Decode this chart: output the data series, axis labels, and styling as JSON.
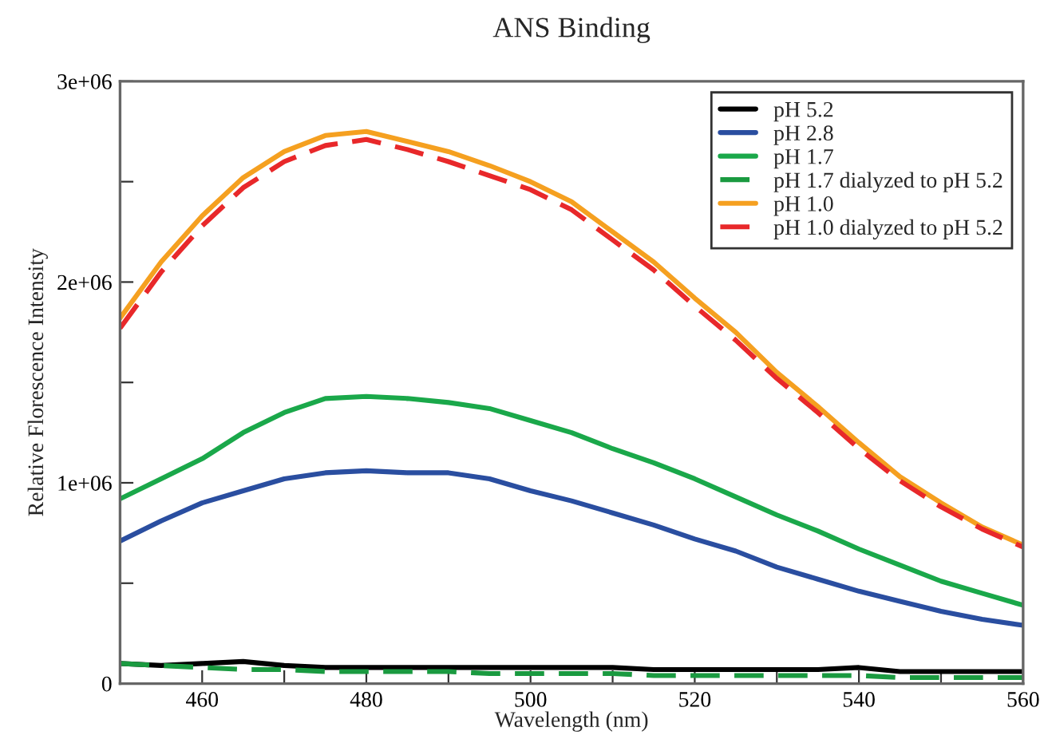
{
  "chart_data": {
    "type": "line",
    "title": "ANS Binding",
    "xlabel": "Wavelength (nm)",
    "ylabel": "Relative Florescence Intensity",
    "x": [
      450,
      455,
      460,
      465,
      470,
      475,
      480,
      485,
      490,
      495,
      500,
      505,
      510,
      515,
      520,
      525,
      530,
      535,
      540,
      545,
      550,
      555,
      560
    ],
    "xlim": [
      450,
      560
    ],
    "xticks": [
      460,
      {
        "value": 470,
        "label": null
      },
      480,
      {
        "value": 490,
        "label": null
      },
      500,
      {
        "value": 510,
        "label": null
      },
      520,
      {
        "value": 530,
        "label": null
      },
      540,
      {
        "value": 550,
        "label": null
      },
      560
    ],
    "ylim": [
      0,
      3000000
    ],
    "yticks": [
      0,
      {
        "value": 500000,
        "label": null
      },
      {
        "value": 1000000,
        "label": "1e+06"
      },
      {
        "value": 1500000,
        "label": null
      },
      {
        "value": 2000000,
        "label": "2e+06"
      },
      {
        "value": 2500000,
        "label": null
      },
      {
        "value": 3000000,
        "label": "3e+06"
      }
    ],
    "grid": false,
    "legend": "top right",
    "marker": "none",
    "series": [
      {
        "name": "pH 5.2",
        "color": "#000000",
        "line_style": "solid",
        "values": [
          100000,
          90000,
          100000,
          110000,
          90000,
          80000,
          80000,
          80000,
          80000,
          80000,
          80000,
          80000,
          80000,
          70000,
          70000,
          70000,
          70000,
          70000,
          80000,
          60000,
          60000,
          60000,
          60000
        ]
      },
      {
        "name": "pH 2.8",
        "color": "#2a4ea0",
        "line_style": "solid",
        "values": [
          710000,
          810000,
          900000,
          960000,
          1020000,
          1050000,
          1060000,
          1050000,
          1050000,
          1020000,
          960000,
          910000,
          850000,
          790000,
          720000,
          660000,
          580000,
          520000,
          460000,
          410000,
          360000,
          320000,
          290000
        ]
      },
      {
        "name": "pH 1.7",
        "color": "#1aa84a",
        "line_style": "solid",
        "values": [
          920000,
          1020000,
          1120000,
          1250000,
          1350000,
          1420000,
          1430000,
          1420000,
          1400000,
          1370000,
          1310000,
          1250000,
          1170000,
          1100000,
          1020000,
          930000,
          840000,
          760000,
          670000,
          590000,
          510000,
          450000,
          390000
        ]
      },
      {
        "name": "pH 1.7 dialyzed to pH 5.2",
        "color": "#1a9a40",
        "line_style": "dashed",
        "values": [
          100000,
          90000,
          80000,
          70000,
          70000,
          60000,
          60000,
          60000,
          60000,
          50000,
          50000,
          50000,
          50000,
          40000,
          40000,
          40000,
          40000,
          40000,
          40000,
          30000,
          30000,
          30000,
          30000
        ]
      },
      {
        "name": "pH 1.0",
        "color": "#f5a020",
        "line_style": "solid",
        "values": [
          1820000,
          2100000,
          2330000,
          2520000,
          2650000,
          2730000,
          2750000,
          2700000,
          2650000,
          2580000,
          2500000,
          2400000,
          2250000,
          2100000,
          1920000,
          1750000,
          1550000,
          1380000,
          1200000,
          1030000,
          900000,
          780000,
          690000
        ]
      },
      {
        "name": "pH 1.0 dialyzed to pH 5.2",
        "color": "#e8282a",
        "line_style": "dashed",
        "values": [
          1770000,
          2050000,
          2280000,
          2470000,
          2600000,
          2680000,
          2710000,
          2660000,
          2600000,
          2530000,
          2460000,
          2360000,
          2210000,
          2060000,
          1880000,
          1710000,
          1520000,
          1350000,
          1170000,
          1010000,
          880000,
          770000,
          680000
        ]
      }
    ]
  }
}
